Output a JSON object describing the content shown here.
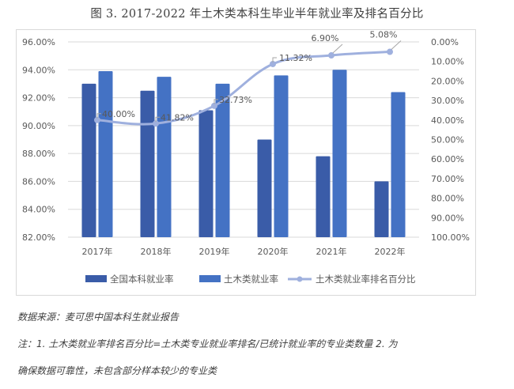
{
  "title": "图 3. 2017-2022 年土木类本科生毕业半年就业率及排名百分比",
  "chart_data": {
    "type": "bar+line",
    "title": "图 3. 2017-2022 年土木类本科生毕业半年就业率及排名百分比",
    "categories": [
      "2017年",
      "2018年",
      "2019年",
      "2020年",
      "2021年",
      "2022年"
    ],
    "series": [
      {
        "name": "全国本科就业率",
        "type": "bar",
        "axis": "left",
        "color": "#3a5ca8",
        "values": [
          93.0,
          92.5,
          91.1,
          89.0,
          87.8,
          86.0
        ]
      },
      {
        "name": "土木类就业率",
        "type": "bar",
        "axis": "left",
        "color": "#4472c4",
        "values": [
          93.9,
          93.5,
          93.0,
          93.6,
          94.0,
          92.4
        ]
      },
      {
        "name": "土木类就业率排名百分比",
        "type": "line",
        "axis": "right",
        "color": "#9fb0de",
        "values": [
          40.0,
          41.82,
          32.73,
          11.32,
          6.9,
          5.08
        ],
        "labels": [
          "40.00%",
          "41.82%",
          "32.73%",
          "11.32%",
          "6.90%",
          "5.08%"
        ]
      }
    ],
    "left_axis": {
      "min": 82,
      "max": 96,
      "step": 2,
      "ticks": [
        "96.00%",
        "94.00%",
        "92.00%",
        "90.00%",
        "88.00%",
        "86.00%",
        "84.00%",
        "82.00%"
      ]
    },
    "right_axis": {
      "min": 0,
      "max": 100,
      "step": 10,
      "reversed": true,
      "ticks": [
        "0.00%",
        "10.00%",
        "20.00%",
        "30.00%",
        "40.00%",
        "50.00%",
        "60.00%",
        "70.00%",
        "80.00%",
        "90.00%",
        "100.00%"
      ]
    },
    "grid": true,
    "legend_position": "bottom"
  },
  "legend": {
    "items": [
      "全国本科就业率",
      "土木类就业率",
      "土木类就业率排名百分比"
    ]
  },
  "notes": {
    "source": "数据来源：麦可思中国本科生就业报告",
    "note_line1": "注：1. 土木类就业率排名百分比=土木类专业就业率排名/已统计就业率的专业类数量  2. 为",
    "note_line2": "确保数据可靠性，未包含部分样本较少的专业类"
  }
}
